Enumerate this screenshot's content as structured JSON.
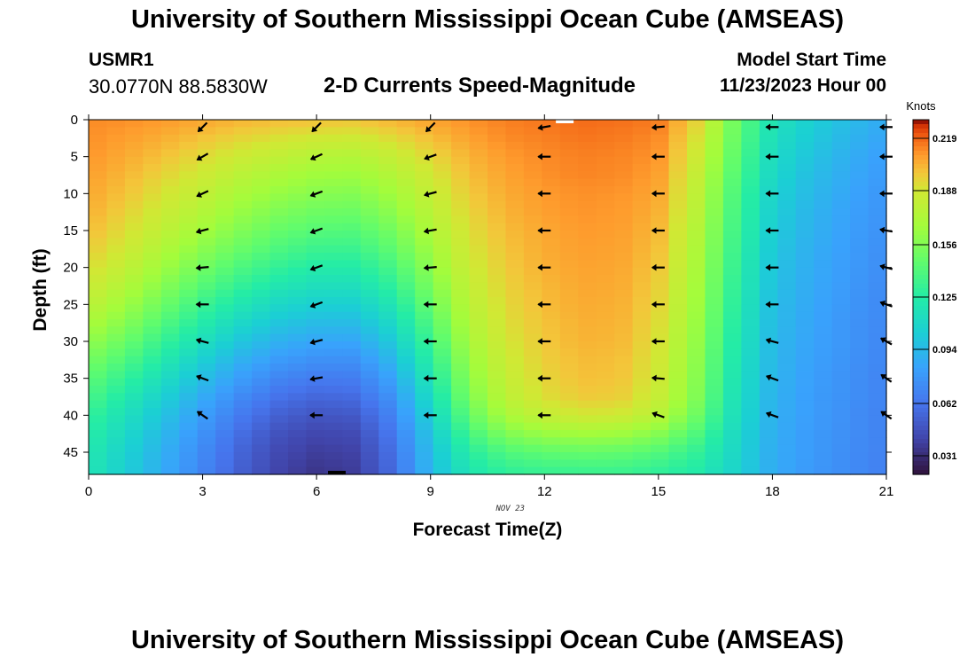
{
  "title": "University of Southern Mississippi Ocean Cube (AMSEAS)",
  "bottom_title": "University of Southern Mississippi Ocean Cube (AMSEAS)",
  "station": {
    "id": "USMR1",
    "coords": "30.0770N  88.5830W"
  },
  "subtitle": "2-D Currents Speed-Magnitude",
  "model_start": {
    "label": "Model Start Time",
    "value": "11/23/2023 Hour 00"
  },
  "chart_data": {
    "type": "heatmap",
    "title": "2-D Currents Speed-Magnitude",
    "xlabel": "Forecast Time(Z)",
    "ylabel": "Depth (ft)",
    "date_label": "NOV 23",
    "x_ticks": [
      0,
      3,
      6,
      9,
      12,
      15,
      18,
      21
    ],
    "y_ticks": [
      0,
      5,
      10,
      15,
      20,
      25,
      30,
      35,
      40,
      45
    ],
    "xlim": [
      0,
      21
    ],
    "ylim": [
      0,
      48
    ],
    "hours": [
      0,
      1,
      2,
      3,
      4,
      5,
      6,
      7,
      8,
      9,
      10,
      11,
      12,
      13,
      14,
      15,
      16,
      17,
      18,
      19,
      20,
      21
    ],
    "depths": [
      0,
      2.5,
      5,
      7.5,
      10,
      12.5,
      15,
      17.5,
      20,
      22.5,
      25,
      27.5,
      30,
      32.5,
      35,
      37.5,
      40,
      42.5,
      45,
      47.5
    ],
    "speed_knots": [
      [
        0.212,
        0.211,
        0.209,
        0.206,
        0.203,
        0.201,
        0.2,
        0.199,
        0.203,
        0.207,
        0.211,
        0.214,
        0.216,
        0.218,
        0.217,
        0.215,
        0.195,
        0.15,
        0.118,
        0.105,
        0.095,
        0.087
      ],
      [
        0.211,
        0.208,
        0.204,
        0.199,
        0.194,
        0.19,
        0.187,
        0.186,
        0.192,
        0.2,
        0.207,
        0.212,
        0.214,
        0.216,
        0.215,
        0.212,
        0.19,
        0.148,
        0.115,
        0.102,
        0.092,
        0.084
      ],
      [
        0.21,
        0.205,
        0.199,
        0.192,
        0.185,
        0.18,
        0.175,
        0.174,
        0.182,
        0.193,
        0.203,
        0.209,
        0.212,
        0.214,
        0.213,
        0.21,
        0.186,
        0.145,
        0.112,
        0.099,
        0.089,
        0.081
      ],
      [
        0.208,
        0.202,
        0.194,
        0.186,
        0.177,
        0.171,
        0.166,
        0.165,
        0.174,
        0.187,
        0.2,
        0.207,
        0.211,
        0.213,
        0.212,
        0.208,
        0.182,
        0.142,
        0.11,
        0.096,
        0.087,
        0.079
      ],
      [
        0.206,
        0.199,
        0.189,
        0.18,
        0.17,
        0.163,
        0.158,
        0.157,
        0.167,
        0.182,
        0.197,
        0.205,
        0.209,
        0.211,
        0.21,
        0.206,
        0.179,
        0.139,
        0.107,
        0.094,
        0.085,
        0.077
      ],
      [
        0.204,
        0.195,
        0.184,
        0.174,
        0.163,
        0.155,
        0.15,
        0.149,
        0.16,
        0.177,
        0.194,
        0.203,
        0.208,
        0.21,
        0.209,
        0.204,
        0.177,
        0.137,
        0.105,
        0.092,
        0.083,
        0.076
      ],
      [
        0.201,
        0.191,
        0.179,
        0.167,
        0.156,
        0.147,
        0.142,
        0.141,
        0.152,
        0.172,
        0.191,
        0.201,
        0.206,
        0.209,
        0.208,
        0.202,
        0.174,
        0.135,
        0.103,
        0.091,
        0.082,
        0.075
      ],
      [
        0.197,
        0.186,
        0.172,
        0.159,
        0.148,
        0.139,
        0.133,
        0.133,
        0.145,
        0.166,
        0.188,
        0.199,
        0.205,
        0.208,
        0.207,
        0.2,
        0.172,
        0.133,
        0.101,
        0.089,
        0.081,
        0.074
      ],
      [
        0.192,
        0.18,
        0.165,
        0.151,
        0.139,
        0.13,
        0.124,
        0.124,
        0.137,
        0.16,
        0.185,
        0.197,
        0.204,
        0.207,
        0.206,
        0.198,
        0.17,
        0.131,
        0.099,
        0.088,
        0.08,
        0.073
      ],
      [
        0.186,
        0.173,
        0.157,
        0.142,
        0.13,
        0.12,
        0.115,
        0.115,
        0.129,
        0.154,
        0.181,
        0.195,
        0.202,
        0.206,
        0.205,
        0.196,
        0.168,
        0.129,
        0.098,
        0.087,
        0.079,
        0.072
      ],
      [
        0.179,
        0.165,
        0.149,
        0.133,
        0.12,
        0.11,
        0.105,
        0.105,
        0.12,
        0.148,
        0.177,
        0.193,
        0.201,
        0.205,
        0.204,
        0.194,
        0.166,
        0.127,
        0.096,
        0.086,
        0.078,
        0.071
      ],
      [
        0.171,
        0.157,
        0.14,
        0.124,
        0.11,
        0.1,
        0.095,
        0.095,
        0.111,
        0.141,
        0.173,
        0.191,
        0.199,
        0.204,
        0.203,
        0.192,
        0.164,
        0.125,
        0.095,
        0.085,
        0.077,
        0.071
      ],
      [
        0.162,
        0.148,
        0.131,
        0.115,
        0.1,
        0.09,
        0.085,
        0.085,
        0.102,
        0.134,
        0.169,
        0.188,
        0.198,
        0.203,
        0.202,
        0.19,
        0.162,
        0.123,
        0.094,
        0.084,
        0.077,
        0.07
      ],
      [
        0.153,
        0.139,
        0.122,
        0.105,
        0.09,
        0.08,
        0.075,
        0.075,
        0.093,
        0.127,
        0.164,
        0.185,
        0.196,
        0.201,
        0.2,
        0.188,
        0.16,
        0.121,
        0.093,
        0.083,
        0.076,
        0.07
      ],
      [
        0.145,
        0.13,
        0.113,
        0.096,
        0.081,
        0.07,
        0.065,
        0.066,
        0.084,
        0.12,
        0.159,
        0.182,
        0.194,
        0.2,
        0.199,
        0.186,
        0.158,
        0.119,
        0.092,
        0.082,
        0.075,
        0.069
      ],
      [
        0.138,
        0.122,
        0.105,
        0.088,
        0.072,
        0.061,
        0.056,
        0.058,
        0.076,
        0.113,
        0.154,
        0.178,
        0.191,
        0.197,
        0.196,
        0.183,
        0.156,
        0.117,
        0.091,
        0.081,
        0.075,
        0.069
      ],
      [
        0.131,
        0.115,
        0.098,
        0.081,
        0.065,
        0.053,
        0.048,
        0.05,
        0.069,
        0.106,
        0.146,
        0.17,
        0.182,
        0.188,
        0.187,
        0.176,
        0.15,
        0.115,
        0.09,
        0.081,
        0.074,
        0.068
      ],
      [
        0.126,
        0.11,
        0.093,
        0.076,
        0.059,
        0.047,
        0.042,
        0.044,
        0.064,
        0.1,
        0.136,
        0.156,
        0.164,
        0.167,
        0.166,
        0.158,
        0.14,
        0.112,
        0.089,
        0.08,
        0.074,
        0.068
      ],
      [
        0.122,
        0.106,
        0.089,
        0.072,
        0.055,
        0.043,
        0.038,
        0.04,
        0.06,
        0.096,
        0.126,
        0.14,
        0.145,
        0.147,
        0.146,
        0.141,
        0.13,
        0.11,
        0.088,
        0.08,
        0.073,
        0.068
      ],
      [
        0.12,
        0.104,
        0.087,
        0.07,
        0.053,
        0.041,
        0.035,
        0.038,
        0.058,
        0.094,
        0.12,
        0.13,
        0.133,
        0.134,
        0.134,
        0.13,
        0.124,
        0.108,
        0.088,
        0.079,
        0.073,
        0.067
      ]
    ],
    "vector_depths": [
      1,
      5,
      10,
      15,
      20,
      25,
      30,
      35,
      40
    ],
    "vector_hours": [
      3,
      6,
      9,
      12,
      15,
      18,
      21
    ],
    "vector_directions_deg": [
      [
        225,
        225,
        225,
        190,
        185,
        180,
        180
      ],
      [
        210,
        205,
        200,
        180,
        180,
        180,
        180
      ],
      [
        205,
        200,
        195,
        180,
        180,
        180,
        180
      ],
      [
        195,
        200,
        190,
        180,
        180,
        180,
        170
      ],
      [
        185,
        200,
        185,
        180,
        180,
        180,
        165
      ],
      [
        180,
        200,
        180,
        180,
        180,
        180,
        160
      ],
      [
        165,
        195,
        180,
        180,
        180,
        165,
        150
      ],
      [
        160,
        190,
        180,
        180,
        175,
        160,
        145
      ],
      [
        145,
        180,
        180,
        180,
        160,
        160,
        145
      ]
    ],
    "colorbar": {
      "label": "Knots",
      "min": 0.02,
      "max": 0.23,
      "ticks": [
        "0.031",
        "0.062",
        "0.094",
        "0.125",
        "0.156",
        "0.188",
        "0.219"
      ]
    }
  }
}
